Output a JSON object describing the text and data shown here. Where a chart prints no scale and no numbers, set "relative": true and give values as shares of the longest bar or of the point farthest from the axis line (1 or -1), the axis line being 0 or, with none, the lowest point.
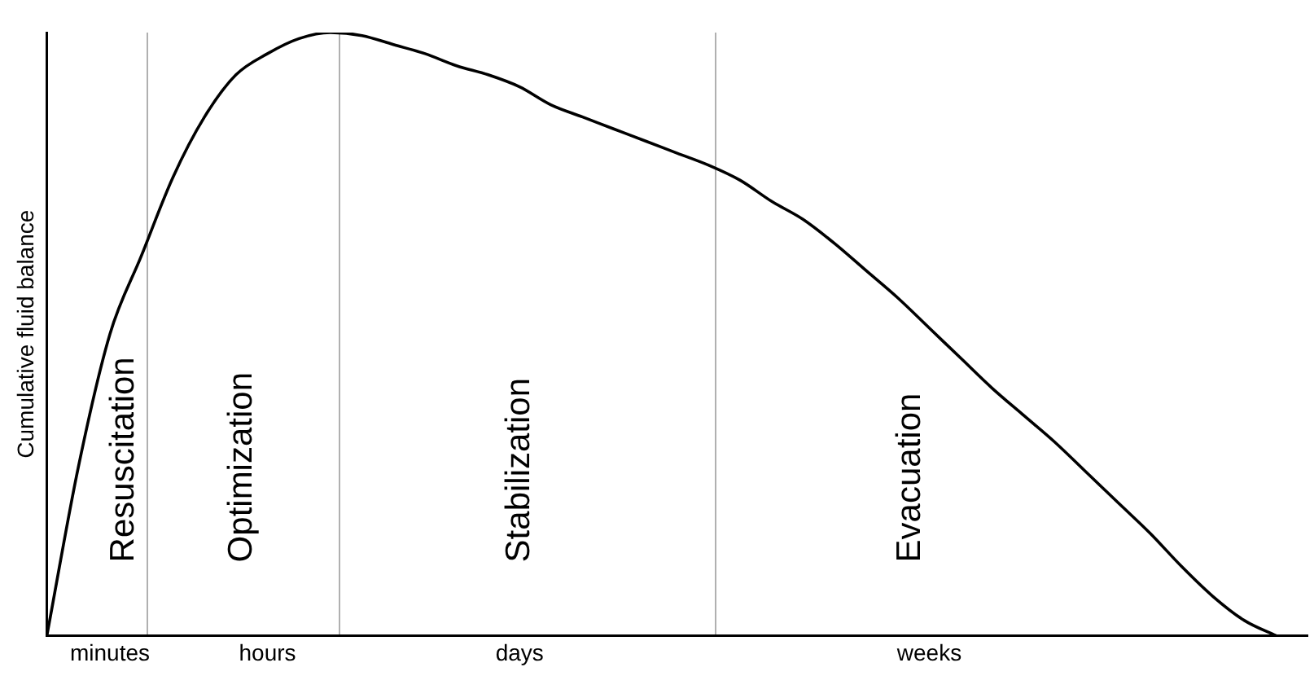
{
  "chart_data": {
    "type": "line",
    "relative": true,
    "ylabel": "Cumulative fluid balance",
    "categories": [
      null,
      null,
      "minutes",
      null,
      null,
      null,
      null,
      "hours",
      null,
      null,
      null,
      null,
      null,
      null,
      null,
      "days",
      null,
      null,
      null,
      null,
      null,
      null,
      null,
      null,
      null,
      null,
      null,
      null,
      "weeks",
      null,
      null,
      null,
      null,
      null,
      null,
      null,
      null,
      null,
      null,
      null,
      null
    ],
    "series": [
      {
        "color": "#000000",
        "values": [
          0,
          0.28,
          0.5,
          0.63,
          0.76,
          0.86,
          0.93,
          0.965,
          0.99,
          1.0,
          0.995,
          0.98,
          0.965,
          0.945,
          0.93,
          0.91,
          0.88,
          0.86,
          0.84,
          0.82,
          0.8,
          0.78,
          0.755,
          0.72,
          0.69,
          0.65,
          0.605,
          0.56,
          0.51,
          0.46,
          0.41,
          0.365,
          0.32,
          0.27,
          0.22,
          0.17,
          0.115,
          0.065,
          0.025,
          0,
          null
        ]
      }
    ],
    "annotations": [
      "Resuscitation",
      "Optimization",
      "Stabilization",
      "Evacuation"
    ],
    "grid": false,
    "legend": false,
    "marker": "none",
    "line_style": "solid"
  }
}
